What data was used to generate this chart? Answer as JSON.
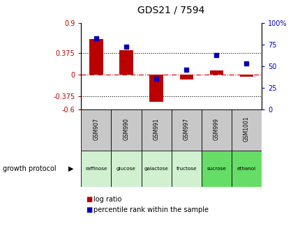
{
  "title": "GDS21 / 7594",
  "samples": [
    "GSM907",
    "GSM990",
    "GSM991",
    "GSM997",
    "GSM999",
    "GSM1001"
  ],
  "protocols": [
    "raffinose",
    "glucose",
    "galactose",
    "fructose",
    "sucrose",
    "ethanol"
  ],
  "protocol_colors": [
    "#d0f0d0",
    "#d0f0d0",
    "#d0f0d0",
    "#d0f0d0",
    "#66dd66",
    "#66dd66"
  ],
  "log_ratio": [
    0.62,
    0.43,
    -0.47,
    -0.08,
    0.07,
    -0.03
  ],
  "percentile_rank": [
    82,
    72,
    35,
    46,
    63,
    53
  ],
  "ylim_left": [
    -0.6,
    0.9
  ],
  "ylim_right": [
    0,
    100
  ],
  "yticks_left": [
    -0.6,
    -0.375,
    0,
    0.375,
    0.9
  ],
  "ytick_labels_left": [
    "-0.6",
    "-0.375",
    "0",
    "0.375",
    "0.9"
  ],
  "yticks_right": [
    0,
    25,
    50,
    75,
    100
  ],
  "ytick_labels_right": [
    "0",
    "25",
    "50",
    "75",
    "100%"
  ],
  "hlines": [
    0.375,
    -0.375
  ],
  "bar_color": "#bb0000",
  "dot_color": "#0000bb",
  "zero_line_color": "#cc0000",
  "hline_color": "#000000",
  "bar_width": 0.45,
  "dot_size": 25,
  "growth_protocol_label": "growth protocol",
  "legend_log_ratio": "log ratio",
  "legend_percentile": "percentile rank within the sample",
  "sample_bg_color": "#c8c8c8",
  "title_color": "black"
}
